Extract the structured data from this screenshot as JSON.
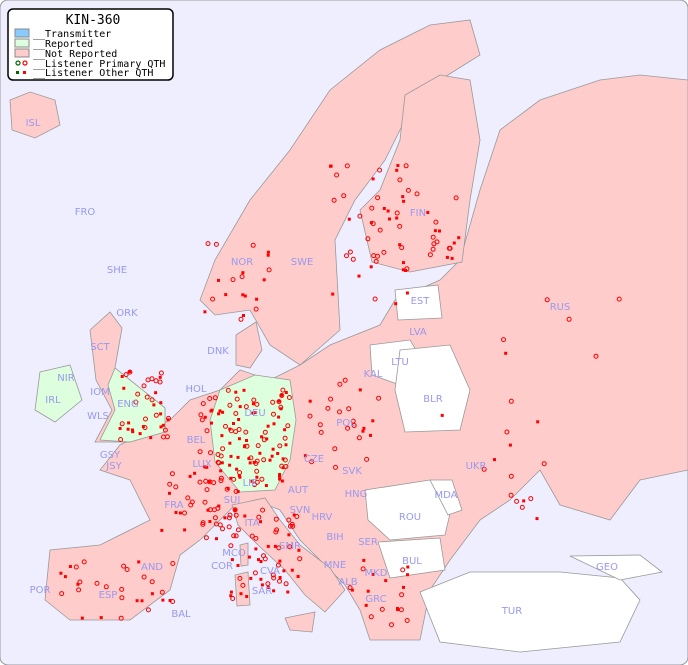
{
  "legend": {
    "title": "KIN-360",
    "items": [
      {
        "label": "__Transmitter",
        "color": "#88ccff"
      },
      {
        "label": "__Reported",
        "color": "#ddffdd"
      },
      {
        "label": "__Not Reported",
        "color": "#ffcccc"
      },
      {
        "label": "__Listener Primary QTH",
        "color": "#ff0000"
      },
      {
        "label": "__Listener Other QTH",
        "color": "#ff0000"
      }
    ]
  },
  "colors": {
    "sea": "#eeeeff",
    "not_reported": "#ffcccc",
    "reported": "#ddffdd",
    "no_data": "#ffffff",
    "marker": "#ff0000",
    "label": "#9999ee"
  },
  "countries": [
    "ISL",
    "FRO",
    "SHE",
    "ORK",
    "NOR",
    "SWE",
    "FIN",
    "EST",
    "LVA",
    "LTU",
    "KAL",
    "BLR",
    "RUS",
    "DNK",
    "HOL",
    "DEU",
    "POL",
    "UKR",
    "IRL",
    "NIR",
    "SCT",
    "IOM",
    "WLS",
    "ENG",
    "GSY",
    "JSY",
    "BEL",
    "LUX",
    "FRA",
    "SUI",
    "LIE",
    "AUT",
    "CZE",
    "SVK",
    "HNG",
    "MDA",
    "ROU",
    "SVN",
    "HRV",
    "BIH",
    "SER",
    "BUL",
    "MNE",
    "ALB",
    "MKD",
    "GRC",
    "TUR",
    "GEO",
    "ITA",
    "MCO",
    "COR",
    "SMR",
    "CVA",
    "SAR",
    "AND",
    "POR",
    "ESP",
    "BAL"
  ]
}
